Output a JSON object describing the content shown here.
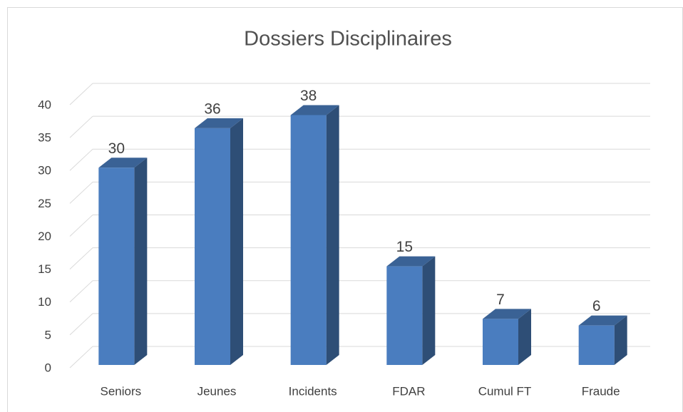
{
  "chart_data": {
    "type": "bar3d",
    "title": "Dossiers Disciplinaires",
    "categories": [
      "Seniors",
      "Jeunes",
      "Incidents",
      "FDAR",
      "Cumul FT",
      "Fraude"
    ],
    "values": [
      30,
      36,
      38,
      15,
      7,
      6
    ],
    "color": "#4a7dbf",
    "ylim": [
      0,
      40
    ],
    "yticks": [
      0,
      5,
      10,
      15,
      20,
      25,
      30,
      35,
      40
    ],
    "grid": true,
    "data_labels": true
  }
}
